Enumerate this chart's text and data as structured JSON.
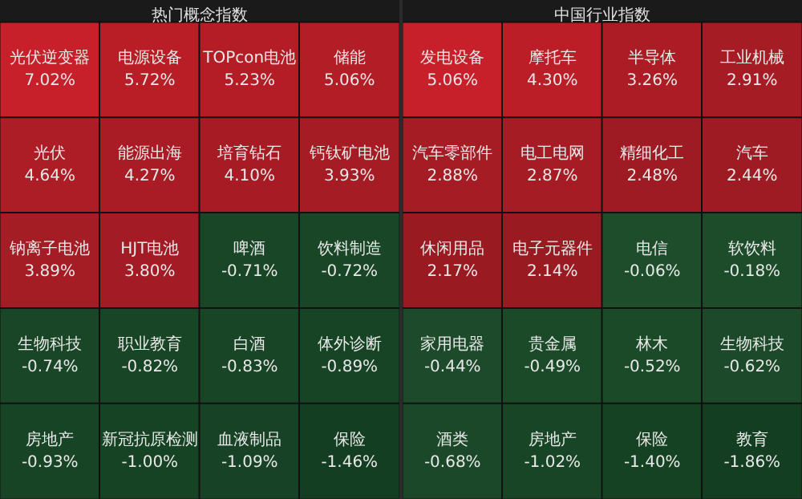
{
  "chart_data": [
    {
      "type": "other",
      "title": "热门概念指数",
      "categories": [
        "光伏逆变器",
        "电源设备",
        "TOPcon电池",
        "储能",
        "光伏",
        "能源出海",
        "培育钻石",
        "钙钛矿电池",
        "钠离子电池",
        "HJT电池",
        "啤酒",
        "饮料制造",
        "生物科技",
        "职业教育",
        "白酒",
        "体外诊断",
        "房地产",
        "新冠抗原检测",
        "血液制品",
        "保险"
      ],
      "values": [
        7.02,
        5.72,
        5.23,
        5.06,
        4.64,
        4.27,
        4.1,
        3.93,
        3.89,
        3.8,
        -0.71,
        -0.72,
        -0.74,
        -0.82,
        -0.83,
        -0.89,
        -0.93,
        -1.0,
        -1.09,
        -1.46
      ],
      "value_labels": [
        "7.02%",
        "5.72%",
        "5.23%",
        "5.06%",
        "4.64%",
        "4.27%",
        "4.10%",
        "3.93%",
        "3.89%",
        "3.80%",
        "-0.71%",
        "-0.72%",
        "-0.74%",
        "-0.82%",
        "-0.83%",
        "-0.89%",
        "-0.93%",
        "-1.00%",
        "-1.09%",
        "-1.46%"
      ]
    },
    {
      "type": "other",
      "title": "中国行业指数",
      "categories": [
        "发电设备",
        "摩托车",
        "半导体",
        "工业机械",
        "汽车零部件",
        "电工电网",
        "精细化工",
        "汽车",
        "休闲用品",
        "电子元器件",
        "电信",
        "软饮料",
        "家用电器",
        "贵金属",
        "林木",
        "生物科技",
        "酒类",
        "房地产",
        "保险",
        "教育"
      ],
      "values": [
        5.06,
        4.3,
        3.26,
        2.91,
        2.88,
        2.87,
        2.48,
        2.44,
        2.17,
        2.14,
        -0.06,
        -0.18,
        -0.44,
        -0.49,
        -0.52,
        -0.62,
        -0.68,
        -1.02,
        -1.4,
        -1.86
      ],
      "value_labels": [
        "5.06%",
        "4.30%",
        "3.26%",
        "2.91%",
        "2.88%",
        "2.87%",
        "2.48%",
        "2.44%",
        "2.17%",
        "2.14%",
        "-0.06%",
        "-0.18%",
        "-0.44%",
        "-0.49%",
        "-0.52%",
        "-0.62%",
        "-0.68%",
        "-1.02%",
        "-1.40%",
        "-1.86%"
      ]
    }
  ]
}
